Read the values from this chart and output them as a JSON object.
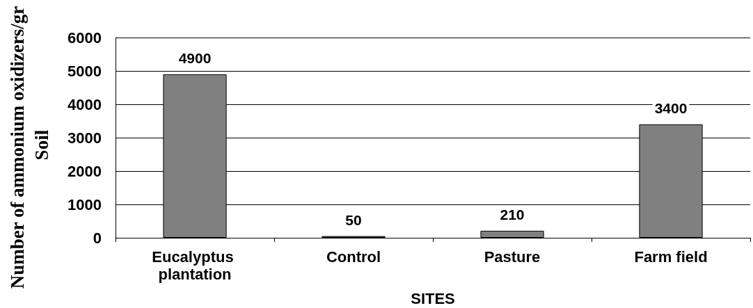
{
  "chart_data": {
    "type": "bar",
    "categories": [
      "Eucalyptus plantation",
      "Control",
      "Pasture",
      "Farm field"
    ],
    "values": [
      4900,
      50,
      210,
      3400
    ],
    "color": "#808080",
    "xlabel": "SITES",
    "ylabel": "Number of ammonium oxidizers/gr Soil",
    "ylim": [
      0,
      6000
    ],
    "yticks": [
      0,
      1000,
      2000,
      3000,
      4000,
      5000,
      6000
    ],
    "grid": "y",
    "data_labels": true
  }
}
